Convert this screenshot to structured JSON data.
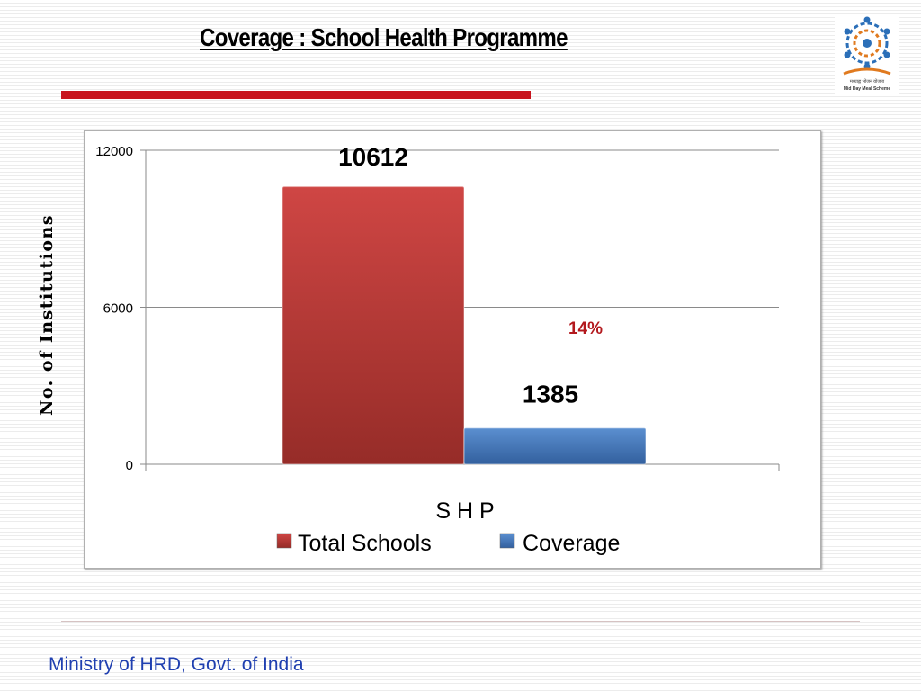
{
  "slide": {
    "title": "Coverage : School Health Programme",
    "footer": "Ministry of HRD, Govt. of India",
    "logo": {
      "caption_line1": "मध्याह्न भोजन योजना",
      "caption_line2": "Mid Day Meal Scheme"
    }
  },
  "colors": {
    "accent_red": "#c8141e",
    "footer_blue": "#1f3fb0",
    "total_schools": "#c0392b",
    "coverage": "#3d6fb0",
    "percent_label": "#b3191e"
  },
  "chart_data": {
    "type": "bar",
    "title": "",
    "xlabel": "S H P",
    "ylabel": "No. of Institutions",
    "ylim": [
      0,
      12000
    ],
    "yticks": [
      0,
      6000,
      12000
    ],
    "ytick_labels": [
      "0",
      "6000",
      "12000"
    ],
    "grid": true,
    "legend_position": "bottom",
    "categories": [
      "S H P"
    ],
    "series": [
      {
        "name": "Total Schools",
        "values": [
          10612
        ],
        "label": "10612",
        "color": "#c0392b"
      },
      {
        "name": "Coverage",
        "values": [
          1385
        ],
        "label": "1385",
        "color": "#3d6fb0"
      }
    ],
    "annotations": [
      {
        "text": "14%"
      }
    ]
  }
}
